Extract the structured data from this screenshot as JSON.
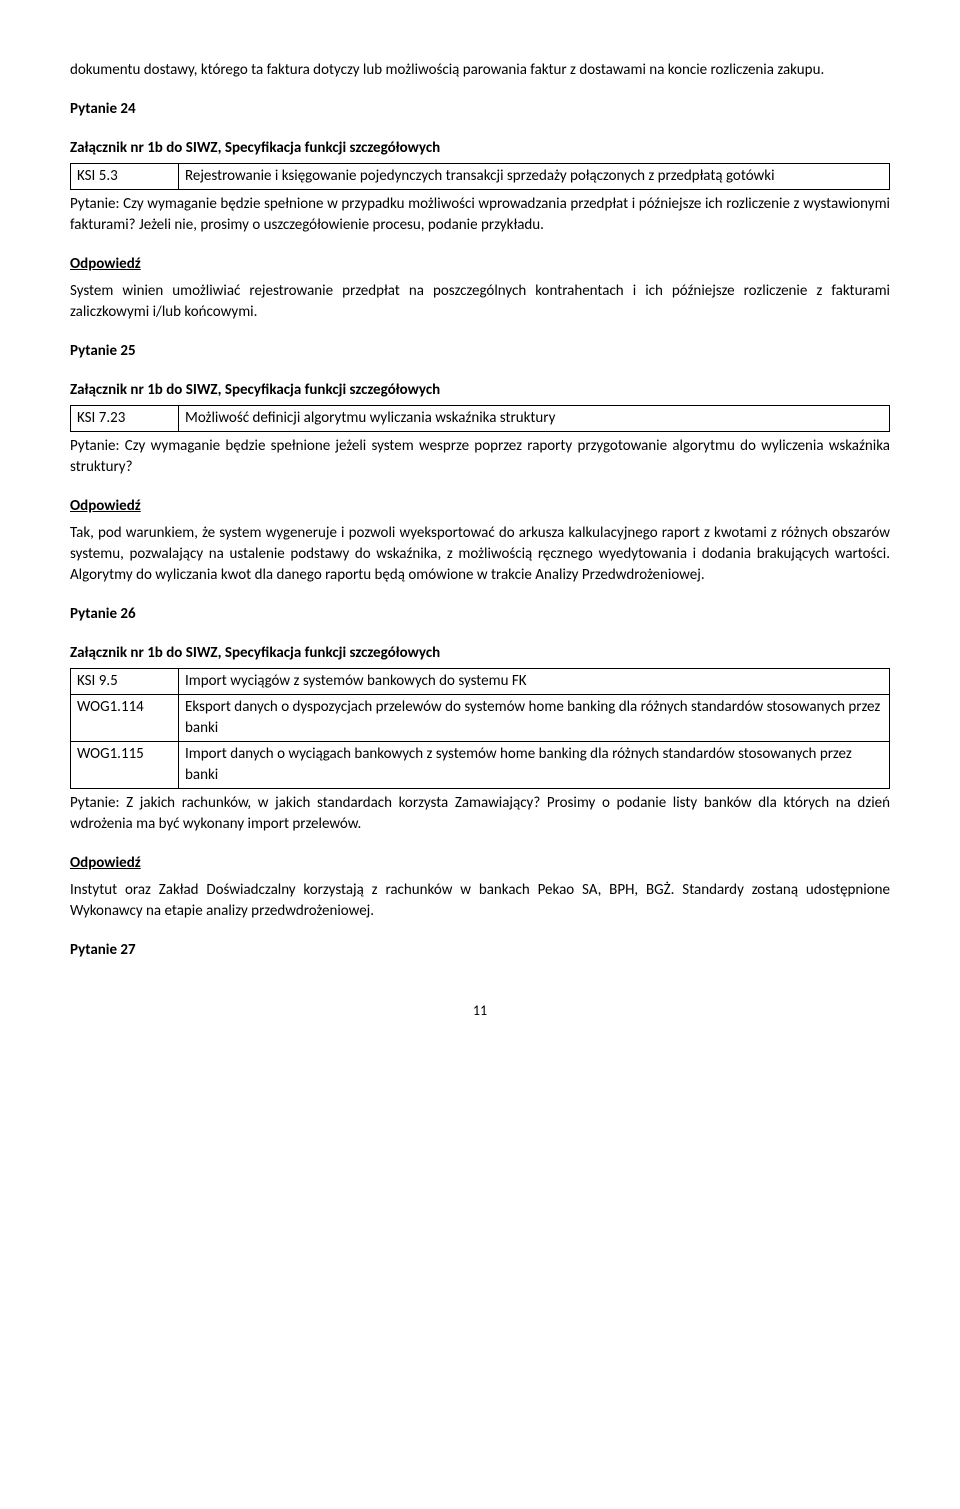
{
  "p1": "dokumentu dostawy, którego ta faktura dotyczy lub możliwością parowania faktur z dostawami na koncie rozliczenia zakupu.",
  "q24": {
    "title": "Pytanie 24",
    "attachment": "Załącznik nr 1b do SIWZ, Specyfikacja funkcji szczegółowych",
    "row_code": "KSI 5.3",
    "row_text": "Rejestrowanie i księgowanie pojedynczych transakcji sprzedaży połączonych z przedpłatą gotówki",
    "question": "Pytanie: Czy wymaganie będzie spełnione w przypadku możliwości wprowadzania przedpłat i późniejsze ich rozliczenie z wystawionymi fakturami? Jeżeli nie, prosimy o uszczegółowienie procesu, podanie przykładu.",
    "answer_label": "Odpowiedź",
    "answer": "System winien umożliwiać rejestrowanie przedpłat na poszczególnych kontrahentach i ich późniejsze rozliczenie z fakturami zaliczkowymi i/lub końcowymi."
  },
  "q25": {
    "title": "Pytanie 25",
    "attachment": "Załącznik nr 1b do SIWZ, Specyfikacja funkcji szczegółowych",
    "row_code": "KSI 7.23",
    "row_text": "Możliwość definicji algorytmu wyliczania wskaźnika struktury",
    "question": "Pytanie: Czy wymaganie będzie spełnione jeżeli system wesprze poprzez raporty przygotowanie algorytmu do wyliczenia wskaźnika struktury?",
    "answer_label": "Odpowiedź",
    "answer": "Tak, pod warunkiem, że system wygeneruje i pozwoli wyeksportować do arkusza kalkulacyjnego raport z kwotami z różnych obszarów systemu, pozwalający na ustalenie podstawy do wskaźnika, z możliwością ręcznego wyedytowania i dodania brakujących wartości. Algorytmy do wyliczania kwot dla danego raportu będą omówione w trakcie Analizy Przedwdrożeniowej."
  },
  "q26": {
    "title": "Pytanie 26",
    "attachment": "Załącznik nr 1b do SIWZ, Specyfikacja funkcji szczegółowych",
    "rows": [
      {
        "code": "KSI 9.5",
        "text": "Import wyciągów z systemów bankowych do systemu FK"
      },
      {
        "code": "WOG1.114",
        "text": "Eksport danych o dyspozycjach przelewów do systemów home banking dla różnych standardów stosowanych przez banki"
      },
      {
        "code": "WOG1.115",
        "text": "Import danych o wyciągach bankowych z systemów home banking dla różnych standardów stosowanych przez banki"
      }
    ],
    "question": "Pytanie: Z jakich rachunków, w jakich standardach korzysta Zamawiający? Prosimy o podanie listy banków dla których na dzień wdrożenia ma być wykonany import przelewów.",
    "answer_label": "Odpowiedź",
    "answer": "Instytut oraz Zakład Doświadczalny korzystają z rachunków w bankach Pekao SA, BPH, BGŻ. Standardy zostaną udostępnione Wykonawcy na etapie analizy przedwdrożeniowej."
  },
  "q27_title": "Pytanie 27",
  "page_number": "11"
}
